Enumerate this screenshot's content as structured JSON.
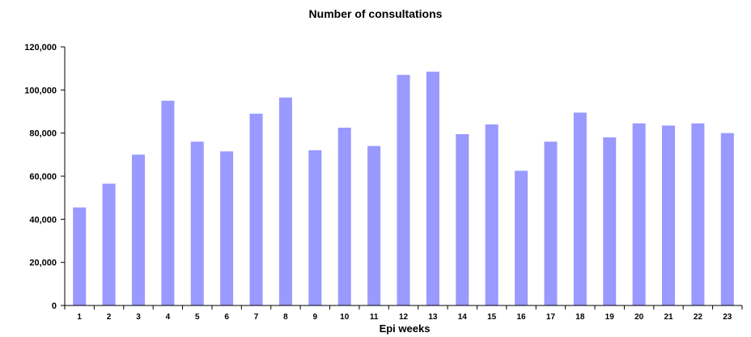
{
  "chart_data": {
    "type": "bar",
    "title": "Number of consultations",
    "xlabel": "Epi weeks",
    "ylabel": "",
    "ylim": [
      0,
      120000
    ],
    "yticks": [
      0,
      20000,
      40000,
      60000,
      80000,
      100000,
      120000
    ],
    "ytick_labels": [
      "0",
      "20,000",
      "40,000",
      "60,000",
      "80,000",
      "100,000",
      "120,000"
    ],
    "categories": [
      "1",
      "2",
      "3",
      "4",
      "5",
      "6",
      "7",
      "8",
      "9",
      "10",
      "11",
      "12",
      "13",
      "14",
      "15",
      "16",
      "17",
      "18",
      "19",
      "20",
      "21",
      "22",
      "23"
    ],
    "values": [
      45500,
      56500,
      70000,
      95000,
      76000,
      71500,
      89000,
      96500,
      72000,
      82500,
      74000,
      107000,
      108500,
      79500,
      84000,
      62500,
      76000,
      89500,
      78000,
      84500,
      83500,
      84500,
      80000
    ],
    "grid": false,
    "legend": "none",
    "bar_color": "#9999ff"
  }
}
